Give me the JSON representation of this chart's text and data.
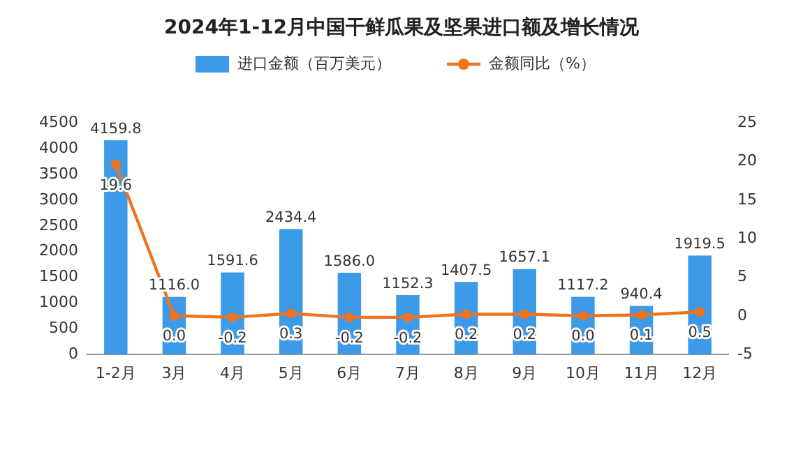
{
  "chart_data": {
    "type": "bar",
    "title": "2024年1-12月中国干鲜瓜果及坚果进口额及增长情况",
    "categories": [
      "1-2月",
      "3月",
      "4月",
      "5月",
      "6月",
      "7月",
      "8月",
      "9月",
      "10月",
      "11月",
      "12月"
    ],
    "series": [
      {
        "name": "进口金额（百万美元）",
        "color": "#3d9ae8",
        "values": [
          4159.8,
          1116.0,
          1591.6,
          2434.4,
          1586.0,
          1152.3,
          1407.5,
          1657.1,
          1117.2,
          940.4,
          1919.5
        ],
        "value_labels": [
          "4159.8",
          "1116.0",
          "1591.6",
          "2434.4",
          "1586.0",
          "1152.3",
          "1407.5",
          "1657.1",
          "1117.2",
          "940.4",
          "1919.5"
        ]
      },
      {
        "name": "金额同比（%）",
        "type": "line",
        "axis": "y2",
        "color": "#f0731f",
        "marker": "circle",
        "values": [
          19.6,
          0.0,
          -0.2,
          0.3,
          -0.2,
          -0.2,
          0.2,
          0.2,
          0.0,
          0.1,
          0.5
        ],
        "value_labels": [
          "19.6",
          "0.0",
          "-0.2",
          "0.3",
          "-0.2",
          "-0.2",
          "0.2",
          "0.2",
          "0.0",
          "0.1",
          "0.5"
        ]
      }
    ],
    "ylim": [
      0,
      4500
    ],
    "yticks": [
      0,
      500,
      1000,
      1500,
      2000,
      2500,
      3000,
      3500,
      4000,
      4500
    ],
    "y2lim": [
      -5,
      25
    ],
    "y2ticks": [
      -5,
      0,
      5,
      10,
      15,
      20,
      25
    ],
    "legend": "top",
    "grid": false
  }
}
